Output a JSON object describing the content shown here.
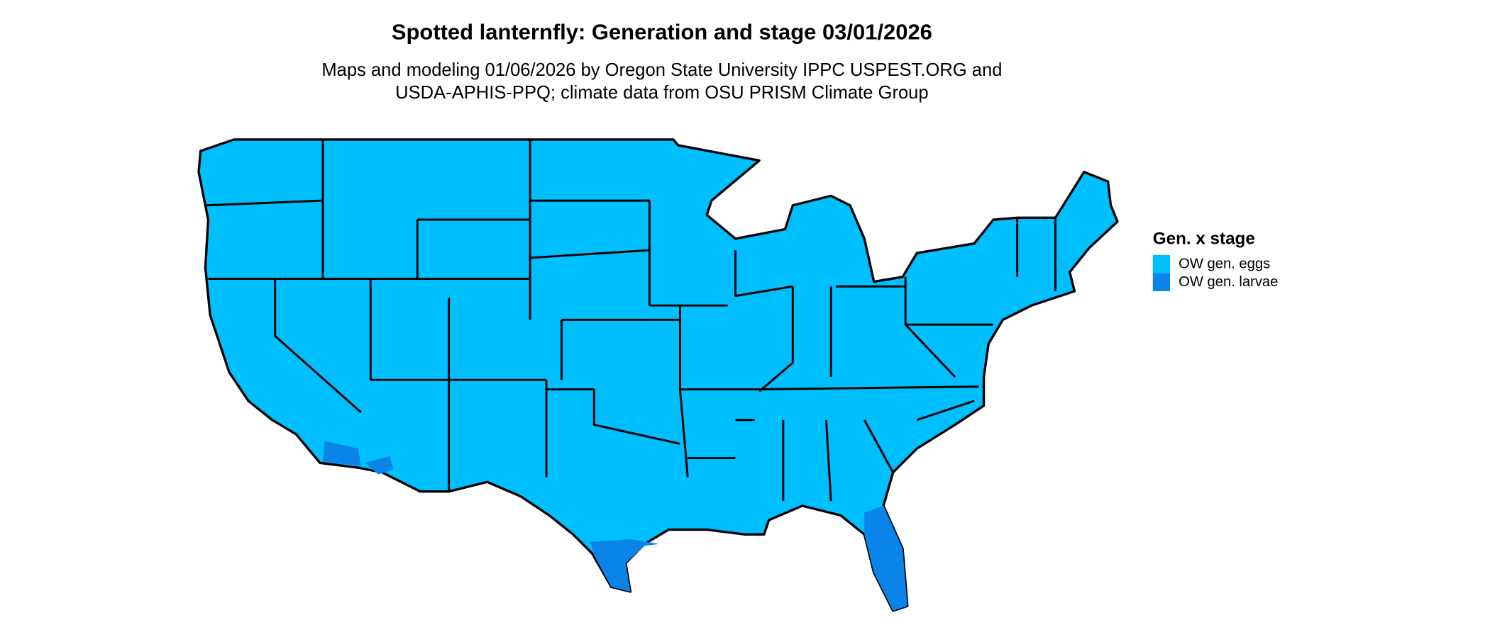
{
  "title": "Spotted lanternfly: Generation and stage 03/01/2026",
  "subtitle_lines": [
    "Maps and modeling 01/06/2026 by Oregon State University IPPC USPEST.ORG and",
    "USDA-APHIS-PPQ; climate data from OSU PRISM Climate Group"
  ],
  "legend": {
    "title": "Gen. x stage",
    "items": [
      {
        "label": "OW gen. eggs",
        "color": "#00bfff"
      },
      {
        "label": "OW gen. larvae",
        "color": "#0a84e8"
      }
    ]
  }
}
